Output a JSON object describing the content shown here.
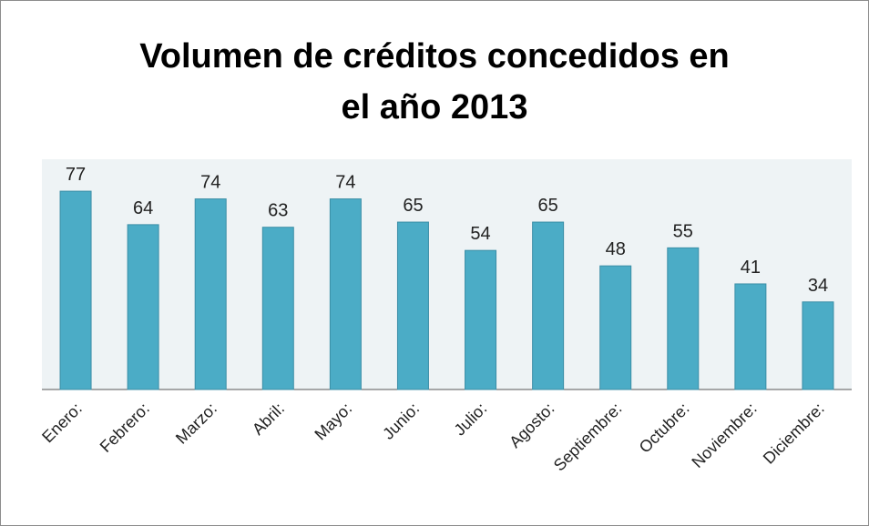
{
  "chart_data": {
    "type": "bar",
    "title": "Volumen de créditos concedidos en el año 2013",
    "categories": [
      "Enero:",
      "Febrero:",
      "Marzo:",
      "Abril:",
      "Mayo:",
      "Junio:",
      "Julio:",
      "Agosto:",
      "Septiembre:",
      "Octubre:",
      "Noviembre:",
      "Diciembre:"
    ],
    "values": [
      77,
      64,
      74,
      63,
      74,
      65,
      54,
      65,
      48,
      55,
      41,
      34
    ],
    "color": "#4bacc6"
  }
}
